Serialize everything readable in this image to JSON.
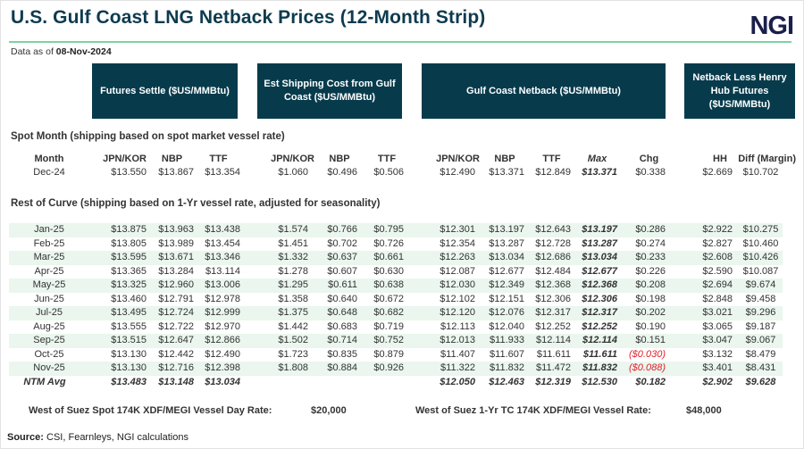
{
  "title": "U.S. Gulf Coast LNG Netback Prices (12-Month Strip)",
  "logo": "NGI",
  "as_of_label": "Data as of",
  "as_of_date": "08-Nov-2024",
  "colors": {
    "header_bg": "#073b4c",
    "title": "#0d3b4f",
    "rule": "#7fd1a3",
    "row_shade": "#eaf6ee",
    "negative": "#e0202a",
    "logo": "#1a1f4a"
  },
  "group_headers": {
    "futures": "Futures Settle ($US/MMBtu)",
    "shipping": "Est Shipping Cost from Gulf Coast ($US/MMBtu)",
    "netback": "Gulf Coast Netback ($US/MMBtu)",
    "hh": "Netback Less Henry Hub Futures ($US/MMBtu)"
  },
  "columns": {
    "month": "Month",
    "f_jk": "JPN/KOR",
    "f_nbp": "NBP",
    "f_ttf": "TTF",
    "s_jk": "JPN/KOR",
    "s_nbp": "NBP",
    "s_ttf": "TTF",
    "n_jk": "JPN/KOR",
    "n_nbp": "NBP",
    "n_ttf": "TTF",
    "max": "Max",
    "chg": "Chg",
    "hh": "HH",
    "diff": "Diff (Margin)"
  },
  "spot_section": "Spot Month (shipping based on spot market vessel rate)",
  "spot_row": {
    "month": "Dec-24",
    "f_jk": "$13.550",
    "f_nbp": "$13.867",
    "f_ttf": "$13.354",
    "s_jk": "$1.060",
    "s_nbp": "$0.496",
    "s_ttf": "$0.506",
    "n_jk": "$12.490",
    "n_nbp": "$13.371",
    "n_ttf": "$12.849",
    "max": "$13.371",
    "chg": "$0.338",
    "hh": "$2.669",
    "diff": "$10.702"
  },
  "curve_section": "Rest of Curve (shipping based on 1-Yr vessel rate, adjusted for seasonality)",
  "curve_rows": [
    {
      "month": "Jan-25",
      "f_jk": "$13.875",
      "f_nbp": "$13.963",
      "f_ttf": "$13.438",
      "s_jk": "$1.574",
      "s_nbp": "$0.766",
      "s_ttf": "$0.795",
      "n_jk": "$12.301",
      "n_nbp": "$13.197",
      "n_ttf": "$12.643",
      "max": "$13.197",
      "chg": "$0.286",
      "hh": "$2.922",
      "diff": "$10.275"
    },
    {
      "month": "Feb-25",
      "f_jk": "$13.805",
      "f_nbp": "$13.989",
      "f_ttf": "$13.454",
      "s_jk": "$1.451",
      "s_nbp": "$0.702",
      "s_ttf": "$0.726",
      "n_jk": "$12.354",
      "n_nbp": "$13.287",
      "n_ttf": "$12.728",
      "max": "$13.287",
      "chg": "$0.274",
      "hh": "$2.827",
      "diff": "$10.460"
    },
    {
      "month": "Mar-25",
      "f_jk": "$13.595",
      "f_nbp": "$13.671",
      "f_ttf": "$13.346",
      "s_jk": "$1.332",
      "s_nbp": "$0.637",
      "s_ttf": "$0.661",
      "n_jk": "$12.263",
      "n_nbp": "$13.034",
      "n_ttf": "$12.686",
      "max": "$13.034",
      "chg": "$0.233",
      "hh": "$2.608",
      "diff": "$10.426"
    },
    {
      "month": "Apr-25",
      "f_jk": "$13.365",
      "f_nbp": "$13.284",
      "f_ttf": "$13.114",
      "s_jk": "$1.278",
      "s_nbp": "$0.607",
      "s_ttf": "$0.630",
      "n_jk": "$12.087",
      "n_nbp": "$12.677",
      "n_ttf": "$12.484",
      "max": "$12.677",
      "chg": "$0.226",
      "hh": "$2.590",
      "diff": "$10.087"
    },
    {
      "month": "May-25",
      "f_jk": "$13.325",
      "f_nbp": "$12.960",
      "f_ttf": "$13.006",
      "s_jk": "$1.295",
      "s_nbp": "$0.611",
      "s_ttf": "$0.638",
      "n_jk": "$12.030",
      "n_nbp": "$12.349",
      "n_ttf": "$12.368",
      "max": "$12.368",
      "chg": "$0.208",
      "hh": "$2.694",
      "diff": "$9.674"
    },
    {
      "month": "Jun-25",
      "f_jk": "$13.460",
      "f_nbp": "$12.791",
      "f_ttf": "$12.978",
      "s_jk": "$1.358",
      "s_nbp": "$0.640",
      "s_ttf": "$0.672",
      "n_jk": "$12.102",
      "n_nbp": "$12.151",
      "n_ttf": "$12.306",
      "max": "$12.306",
      "chg": "$0.198",
      "hh": "$2.848",
      "diff": "$9.458"
    },
    {
      "month": "Jul-25",
      "f_jk": "$13.495",
      "f_nbp": "$12.724",
      "f_ttf": "$12.999",
      "s_jk": "$1.375",
      "s_nbp": "$0.648",
      "s_ttf": "$0.682",
      "n_jk": "$12.120",
      "n_nbp": "$12.076",
      "n_ttf": "$12.317",
      "max": "$12.317",
      "chg": "$0.202",
      "hh": "$3.021",
      "diff": "$9.296"
    },
    {
      "month": "Aug-25",
      "f_jk": "$13.555",
      "f_nbp": "$12.722",
      "f_ttf": "$12.970",
      "s_jk": "$1.442",
      "s_nbp": "$0.683",
      "s_ttf": "$0.719",
      "n_jk": "$12.113",
      "n_nbp": "$12.040",
      "n_ttf": "$12.252",
      "max": "$12.252",
      "chg": "$0.190",
      "hh": "$3.065",
      "diff": "$9.187"
    },
    {
      "month": "Sep-25",
      "f_jk": "$13.515",
      "f_nbp": "$12.647",
      "f_ttf": "$12.866",
      "s_jk": "$1.502",
      "s_nbp": "$0.714",
      "s_ttf": "$0.752",
      "n_jk": "$12.013",
      "n_nbp": "$11.933",
      "n_ttf": "$12.114",
      "max": "$12.114",
      "chg": "$0.151",
      "hh": "$3.047",
      "diff": "$9.067"
    },
    {
      "month": "Oct-25",
      "f_jk": "$13.130",
      "f_nbp": "$12.442",
      "f_ttf": "$12.490",
      "s_jk": "$1.723",
      "s_nbp": "$0.835",
      "s_ttf": "$0.879",
      "n_jk": "$11.407",
      "n_nbp": "$11.607",
      "n_ttf": "$11.611",
      "max": "$11.611",
      "chg": "($0.030)",
      "hh": "$3.132",
      "diff": "$8.479"
    },
    {
      "month": "Nov-25",
      "f_jk": "$13.130",
      "f_nbp": "$12.716",
      "f_ttf": "$12.398",
      "s_jk": "$1.808",
      "s_nbp": "$0.884",
      "s_ttf": "$0.926",
      "n_jk": "$11.322",
      "n_nbp": "$11.832",
      "n_ttf": "$11.472",
      "max": "$11.832",
      "chg": "($0.088)",
      "hh": "$3.401",
      "diff": "$8.431"
    }
  ],
  "ntm_row": {
    "month": "NTM Avg",
    "f_jk": "$13.483",
    "f_nbp": "$13.148",
    "f_ttf": "$13.034",
    "n_jk": "$12.050",
    "n_nbp": "$12.463",
    "n_ttf": "$12.319",
    "max": "$12.530",
    "chg": "$0.182",
    "hh": "$2.902",
    "diff": "$9.628"
  },
  "footer": {
    "spot_rate_label": "West of Suez Spot 174K XDF/MEGI Vessel Day Rate:",
    "spot_rate_value": "$20,000",
    "tc_rate_label": "West of Suez 1-Yr TC 174K XDF/MEGI Vessel Rate:",
    "tc_rate_value": "$48,000"
  },
  "source_label": "Source:",
  "source_text": "CSI, Fearnleys, NGI calculations"
}
